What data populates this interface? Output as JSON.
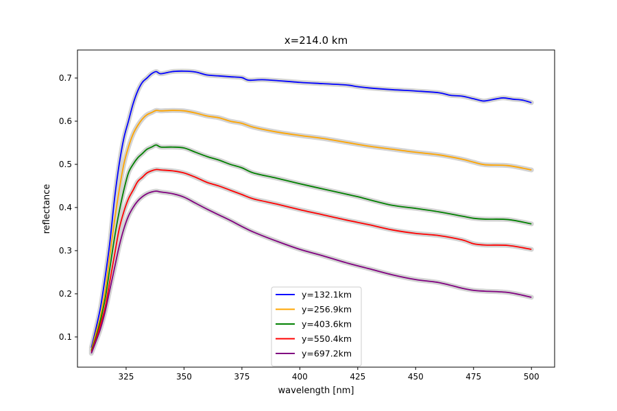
{
  "chart_data": {
    "type": "line",
    "title": "x=214.0 km",
    "xlabel": "wavelength [nm]",
    "ylabel": "reflectance",
    "xlim": [
      304,
      510
    ],
    "ylim": [
      0.03,
      0.765
    ],
    "xticks": [
      325,
      350,
      375,
      400,
      425,
      450,
      475,
      500
    ],
    "yticks": [
      0.1,
      0.2,
      0.3,
      0.4,
      0.5,
      0.6,
      0.7
    ],
    "grid": false,
    "legend_position": "lower-center",
    "uncertainty_band_color": "#d3d3d3",
    "series": [
      {
        "name": "y=132.1km",
        "color": "#0000ff",
        "points": [
          [
            310,
            0.075
          ],
          [
            312,
            0.12
          ],
          [
            314,
            0.17
          ],
          [
            316,
            0.24
          ],
          [
            318,
            0.32
          ],
          [
            320,
            0.42
          ],
          [
            322,
            0.5
          ],
          [
            324,
            0.56
          ],
          [
            326,
            0.6
          ],
          [
            328,
            0.64
          ],
          [
            330,
            0.67
          ],
          [
            332,
            0.69
          ],
          [
            334,
            0.7
          ],
          [
            336,
            0.71
          ],
          [
            338,
            0.715
          ],
          [
            340,
            0.71
          ],
          [
            345,
            0.715
          ],
          [
            350,
            0.716
          ],
          [
            355,
            0.714
          ],
          [
            360,
            0.707
          ],
          [
            365,
            0.705
          ],
          [
            370,
            0.703
          ],
          [
            375,
            0.701
          ],
          [
            378,
            0.695
          ],
          [
            385,
            0.696
          ],
          [
            400,
            0.69
          ],
          [
            410,
            0.687
          ],
          [
            420,
            0.684
          ],
          [
            425,
            0.68
          ],
          [
            430,
            0.677
          ],
          [
            440,
            0.673
          ],
          [
            450,
            0.67
          ],
          [
            460,
            0.666
          ],
          [
            465,
            0.66
          ],
          [
            470,
            0.658
          ],
          [
            475,
            0.652
          ],
          [
            478,
            0.648
          ],
          [
            480,
            0.647
          ],
          [
            485,
            0.652
          ],
          [
            488,
            0.654
          ],
          [
            492,
            0.651
          ],
          [
            496,
            0.649
          ],
          [
            500,
            0.643
          ]
        ]
      },
      {
        "name": "y=256.9km",
        "color": "#ffa500",
        "points": [
          [
            310,
            0.07
          ],
          [
            312,
            0.11
          ],
          [
            314,
            0.15
          ],
          [
            316,
            0.21
          ],
          [
            318,
            0.29
          ],
          [
            320,
            0.37
          ],
          [
            322,
            0.44
          ],
          [
            324,
            0.5
          ],
          [
            326,
            0.54
          ],
          [
            328,
            0.57
          ],
          [
            330,
            0.59
          ],
          [
            332,
            0.605
          ],
          [
            334,
            0.615
          ],
          [
            336,
            0.62
          ],
          [
            338,
            0.625
          ],
          [
            340,
            0.624
          ],
          [
            345,
            0.625
          ],
          [
            350,
            0.624
          ],
          [
            355,
            0.619
          ],
          [
            360,
            0.612
          ],
          [
            365,
            0.608
          ],
          [
            370,
            0.6
          ],
          [
            375,
            0.595
          ],
          [
            380,
            0.586
          ],
          [
            390,
            0.575
          ],
          [
            400,
            0.567
          ],
          [
            410,
            0.56
          ],
          [
            420,
            0.551
          ],
          [
            430,
            0.542
          ],
          [
            440,
            0.535
          ],
          [
            450,
            0.528
          ],
          [
            460,
            0.522
          ],
          [
            470,
            0.512
          ],
          [
            475,
            0.505
          ],
          [
            480,
            0.499
          ],
          [
            490,
            0.497
          ],
          [
            500,
            0.487
          ]
        ]
      },
      {
        "name": "y=403.6km",
        "color": "#008000",
        "points": [
          [
            310,
            0.068
          ],
          [
            312,
            0.1
          ],
          [
            314,
            0.14
          ],
          [
            316,
            0.19
          ],
          [
            318,
            0.26
          ],
          [
            320,
            0.33
          ],
          [
            322,
            0.39
          ],
          [
            324,
            0.44
          ],
          [
            326,
            0.48
          ],
          [
            328,
            0.5
          ],
          [
            330,
            0.515
          ],
          [
            332,
            0.525
          ],
          [
            334,
            0.535
          ],
          [
            336,
            0.54
          ],
          [
            338,
            0.545
          ],
          [
            340,
            0.54
          ],
          [
            345,
            0.54
          ],
          [
            350,
            0.538
          ],
          [
            355,
            0.528
          ],
          [
            360,
            0.518
          ],
          [
            365,
            0.51
          ],
          [
            370,
            0.5
          ],
          [
            375,
            0.492
          ],
          [
            380,
            0.48
          ],
          [
            390,
            0.468
          ],
          [
            400,
            0.455
          ],
          [
            410,
            0.443
          ],
          [
            420,
            0.431
          ],
          [
            425,
            0.425
          ],
          [
            430,
            0.418
          ],
          [
            440,
            0.405
          ],
          [
            450,
            0.398
          ],
          [
            460,
            0.39
          ],
          [
            470,
            0.38
          ],
          [
            475,
            0.375
          ],
          [
            480,
            0.373
          ],
          [
            490,
            0.372
          ],
          [
            500,
            0.362
          ]
        ]
      },
      {
        "name": "y=550.4km",
        "color": "#ff0000",
        "points": [
          [
            310,
            0.065
          ],
          [
            312,
            0.095
          ],
          [
            314,
            0.13
          ],
          [
            316,
            0.17
          ],
          [
            318,
            0.23
          ],
          [
            320,
            0.29
          ],
          [
            322,
            0.35
          ],
          [
            324,
            0.39
          ],
          [
            326,
            0.42
          ],
          [
            328,
            0.44
          ],
          [
            330,
            0.46
          ],
          [
            332,
            0.47
          ],
          [
            334,
            0.48
          ],
          [
            336,
            0.485
          ],
          [
            338,
            0.488
          ],
          [
            340,
            0.487
          ],
          [
            345,
            0.485
          ],
          [
            350,
            0.48
          ],
          [
            355,
            0.47
          ],
          [
            360,
            0.458
          ],
          [
            365,
            0.45
          ],
          [
            370,
            0.44
          ],
          [
            375,
            0.43
          ],
          [
            380,
            0.42
          ],
          [
            390,
            0.408
          ],
          [
            400,
            0.395
          ],
          [
            410,
            0.383
          ],
          [
            420,
            0.371
          ],
          [
            430,
            0.36
          ],
          [
            440,
            0.348
          ],
          [
            450,
            0.34
          ],
          [
            460,
            0.335
          ],
          [
            470,
            0.325
          ],
          [
            475,
            0.316
          ],
          [
            480,
            0.313
          ],
          [
            490,
            0.312
          ],
          [
            500,
            0.303
          ]
        ]
      },
      {
        "name": "y=697.2km",
        "color": "#800080",
        "points": [
          [
            310,
            0.062
          ],
          [
            312,
            0.09
          ],
          [
            314,
            0.12
          ],
          [
            316,
            0.16
          ],
          [
            318,
            0.21
          ],
          [
            320,
            0.26
          ],
          [
            322,
            0.31
          ],
          [
            324,
            0.35
          ],
          [
            326,
            0.38
          ],
          [
            328,
            0.4
          ],
          [
            330,
            0.415
          ],
          [
            332,
            0.425
          ],
          [
            334,
            0.432
          ],
          [
            336,
            0.436
          ],
          [
            338,
            0.438
          ],
          [
            340,
            0.436
          ],
          [
            345,
            0.432
          ],
          [
            350,
            0.424
          ],
          [
            355,
            0.41
          ],
          [
            360,
            0.396
          ],
          [
            365,
            0.383
          ],
          [
            370,
            0.37
          ],
          [
            375,
            0.356
          ],
          [
            380,
            0.343
          ],
          [
            390,
            0.322
          ],
          [
            400,
            0.303
          ],
          [
            410,
            0.288
          ],
          [
            420,
            0.272
          ],
          [
            430,
            0.258
          ],
          [
            440,
            0.244
          ],
          [
            450,
            0.233
          ],
          [
            460,
            0.226
          ],
          [
            470,
            0.213
          ],
          [
            475,
            0.208
          ],
          [
            480,
            0.206
          ],
          [
            490,
            0.203
          ],
          [
            500,
            0.192
          ]
        ]
      }
    ]
  }
}
